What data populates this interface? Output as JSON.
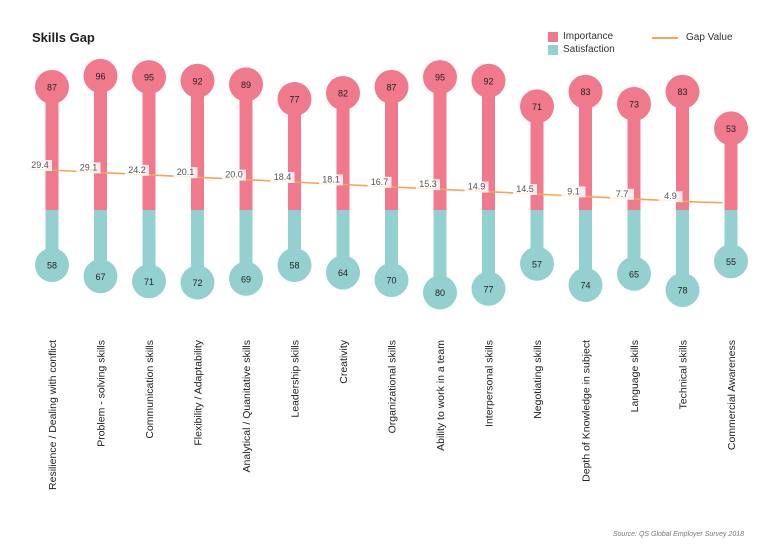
{
  "chart_data": {
    "type": "lollipop",
    "title": "Skills Gap",
    "categories": [
      "Resilience / Dealing with conflict",
      "Problem - solving skills",
      "Communication skills",
      "Flexibility / Adaptability",
      "Analytical / Quanitative skills",
      "Leadership skills",
      "Creativity",
      "Organizational skills",
      "Ability to work in a team",
      "Interpersonal skills",
      "Negotiating skills",
      "Depth of Knowledge in subject",
      "Language skills",
      "Technical skills",
      "Commercial Awareness"
    ],
    "series": [
      {
        "name": "Importance",
        "values": [
          87,
          96,
          95,
          92,
          89,
          77,
          82,
          87,
          95,
          92,
          71,
          83,
          73,
          83,
          53
        ]
      },
      {
        "name": "Satisfaction",
        "values": [
          58,
          67,
          71,
          72,
          69,
          58,
          64,
          70,
          80,
          77,
          57,
          74,
          65,
          78,
          55
        ]
      },
      {
        "name": "Gap Value",
        "values": [
          29.4,
          29.1,
          24.2,
          20.1,
          20.0,
          18.4,
          18.1,
          16.7,
          15.3,
          14.9,
          14.5,
          9.1,
          7.7,
          4.9,
          null
        ]
      }
    ],
    "gap_labels": [
      "29.4",
      "29.1",
      "24.2",
      "20.1",
      "20.0",
      "18.4",
      "18.1",
      "16.7",
      "15.3",
      "14.9",
      "14.5",
      "9.1",
      "7.7",
      "4.9",
      ""
    ],
    "legend": {
      "importance": "Importance",
      "satisfaction": "Satisfaction",
      "gap": "Gap Value",
      "position": "top-right"
    },
    "source": "Source: QS Global Employer Survey 2018",
    "colors": {
      "importance": "#f07a8c",
      "satisfaction": "#94d0d0",
      "gap": "#f2a65a"
    }
  }
}
